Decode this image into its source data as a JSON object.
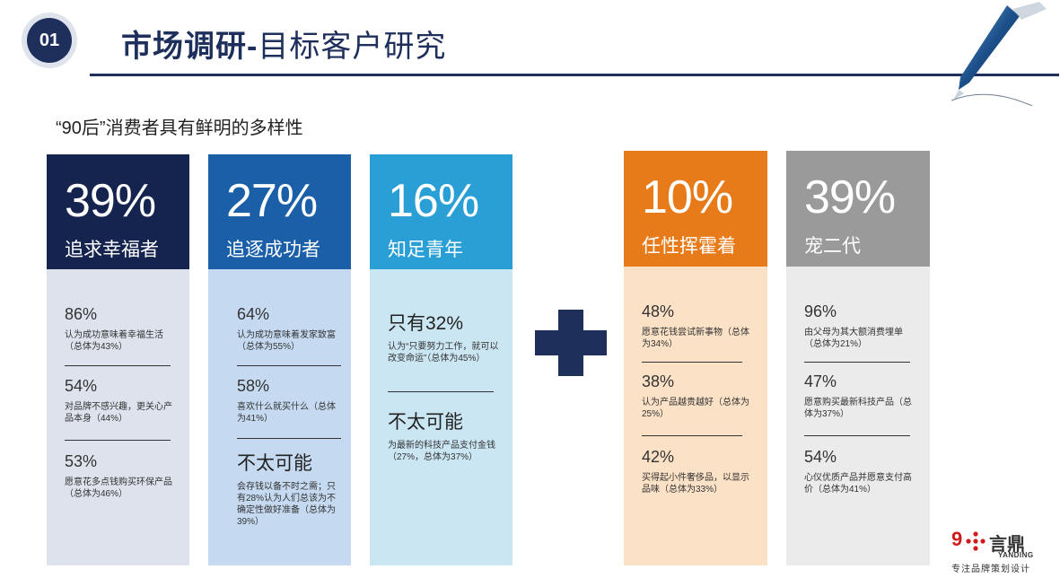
{
  "header": {
    "badge": "01",
    "title_bold": "市场调研-",
    "title_rest": "目标客户研究"
  },
  "subtitle": "“90后”消费者具有鲜明的多样性",
  "colors": {
    "navy": "#1e2f5c",
    "card1_head": "#14244f",
    "card2_head": "#1a5fa8",
    "card3_head": "#2a9fd6",
    "card4_head": "#e77b1a",
    "card5_head": "#9a9a9a"
  },
  "cards": [
    {
      "pct": "39%",
      "label": "追求幸福者",
      "stats": [
        {
          "num": "86%",
          "desc": "认为成功意味着幸福生活（总体为43%）"
        },
        {
          "num": "54%",
          "desc": "对品牌不感兴趣，更关心产品本身（44%）"
        },
        {
          "num": "53%",
          "desc": "愿意花多点钱购买环保产品（总体为46%）"
        }
      ]
    },
    {
      "pct": "27%",
      "label": "追逐成功者",
      "stats": [
        {
          "num": "64%",
          "desc": "认为成功意味着发家致富（总体为55%）"
        },
        {
          "num": "58%",
          "desc": "喜欢什么就买什么（总体为41%）"
        },
        {
          "big": "不太可能",
          "desc": "会存钱以备不时之需；只有28%认为人们总该为不确定性做好准备（总体为39%）"
        }
      ]
    },
    {
      "pct": "16%",
      "label": "知足青年",
      "stats": [
        {
          "big": "只有32%",
          "desc": "认为“只要努力工作，就可以改变命运”（总体为45%）"
        },
        {
          "big": "不太可能",
          "desc": "为最新的科技产品支付金钱（27%，总体为37%）"
        }
      ]
    },
    {
      "pct": "10%",
      "label": "任性挥霍着",
      "stats": [
        {
          "num": "48%",
          "desc": "愿意花钱尝试新事物（总体为34%）"
        },
        {
          "num": "38%",
          "desc": "认为产品越贵越好（总体为25%）"
        },
        {
          "num": "42%",
          "desc": "买得起小件奢侈品，以显示品味（总体为33%）"
        }
      ]
    },
    {
      "pct": "39%",
      "label": "宠二代",
      "stats": [
        {
          "num": "96%",
          "desc": "由父母为其大额消费埋单（总体为21%）"
        },
        {
          "num": "47%",
          "desc": "愿意购买最新科技产品（总体为37%）"
        },
        {
          "num": "54%",
          "desc": "心仪优质产品并愿意支付高价（总体为41%）"
        }
      ]
    }
  ],
  "logo": {
    "mark": "9",
    "cn": "言鼎",
    "en": "YANDING",
    "slogan": "专注品牌策划设计"
  }
}
